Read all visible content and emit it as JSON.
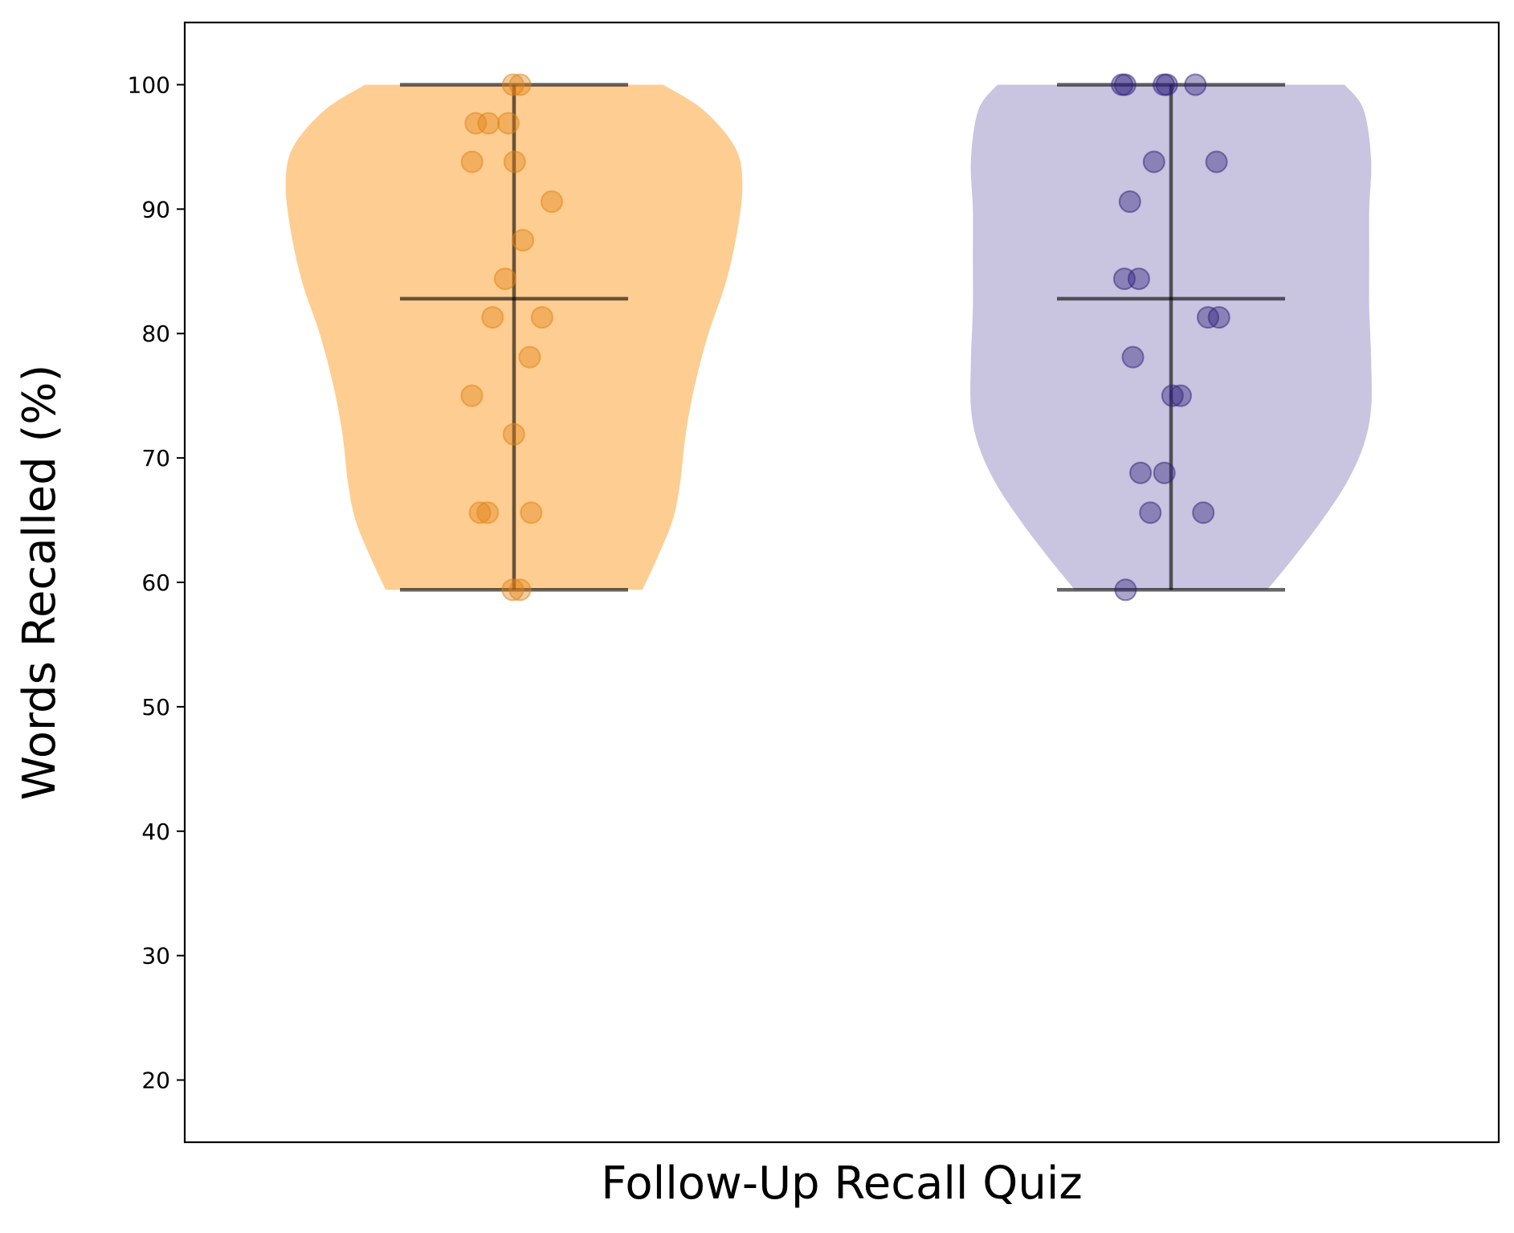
{
  "chart_data": {
    "type": "violin",
    "xlabel": "Follow-Up Recall Quiz",
    "ylabel": "Words Recalled (%)",
    "ylim": [
      15,
      105
    ],
    "yticks": [
      20,
      30,
      40,
      50,
      60,
      70,
      80,
      90,
      100
    ],
    "grid": false,
    "legend": "none",
    "series": [
      {
        "color": "#fdb863",
        "point_color": "#e08214",
        "stats": {
          "min": 59.4,
          "median": 82.8,
          "max": 100
        },
        "points": [
          100,
          100,
          96.9,
          96.9,
          96.9,
          93.8,
          93.8,
          90.6,
          87.5,
          84.4,
          81.3,
          81.3,
          78.1,
          75.0,
          71.9,
          65.6,
          65.6,
          65.6,
          59.4,
          59.4
        ],
        "density": [
          [
            59.4,
            0.68
          ],
          [
            62,
            0.76
          ],
          [
            65,
            0.84
          ],
          [
            68,
            0.88
          ],
          [
            72,
            0.91
          ],
          [
            76,
            0.96
          ],
          [
            80,
            1.03
          ],
          [
            84,
            1.12
          ],
          [
            88,
            1.18
          ],
          [
            92,
            1.21
          ],
          [
            95,
            1.17
          ],
          [
            98,
            1.0
          ],
          [
            100,
            0.79
          ]
        ]
      },
      {
        "color": "#b2abd2",
        "point_color": "#2d1e7a",
        "stats": {
          "min": 59.4,
          "median": 82.8,
          "max": 100
        },
        "points": [
          100,
          100,
          100,
          100,
          100,
          93.8,
          93.8,
          90.6,
          84.4,
          84.4,
          81.3,
          81.3,
          78.1,
          75.0,
          75.0,
          68.8,
          68.8,
          65.6,
          65.6,
          59.4
        ],
        "density": [
          [
            59.4,
            0.51
          ],
          [
            62,
            0.65
          ],
          [
            65,
            0.8
          ],
          [
            68,
            0.93
          ],
          [
            71,
            1.02
          ],
          [
            74,
            1.06
          ],
          [
            78,
            1.06
          ],
          [
            82,
            1.05
          ],
          [
            86,
            1.05
          ],
          [
            90,
            1.05
          ],
          [
            94,
            1.06
          ],
          [
            98,
            1.02
          ],
          [
            100,
            0.92
          ]
        ]
      }
    ]
  }
}
